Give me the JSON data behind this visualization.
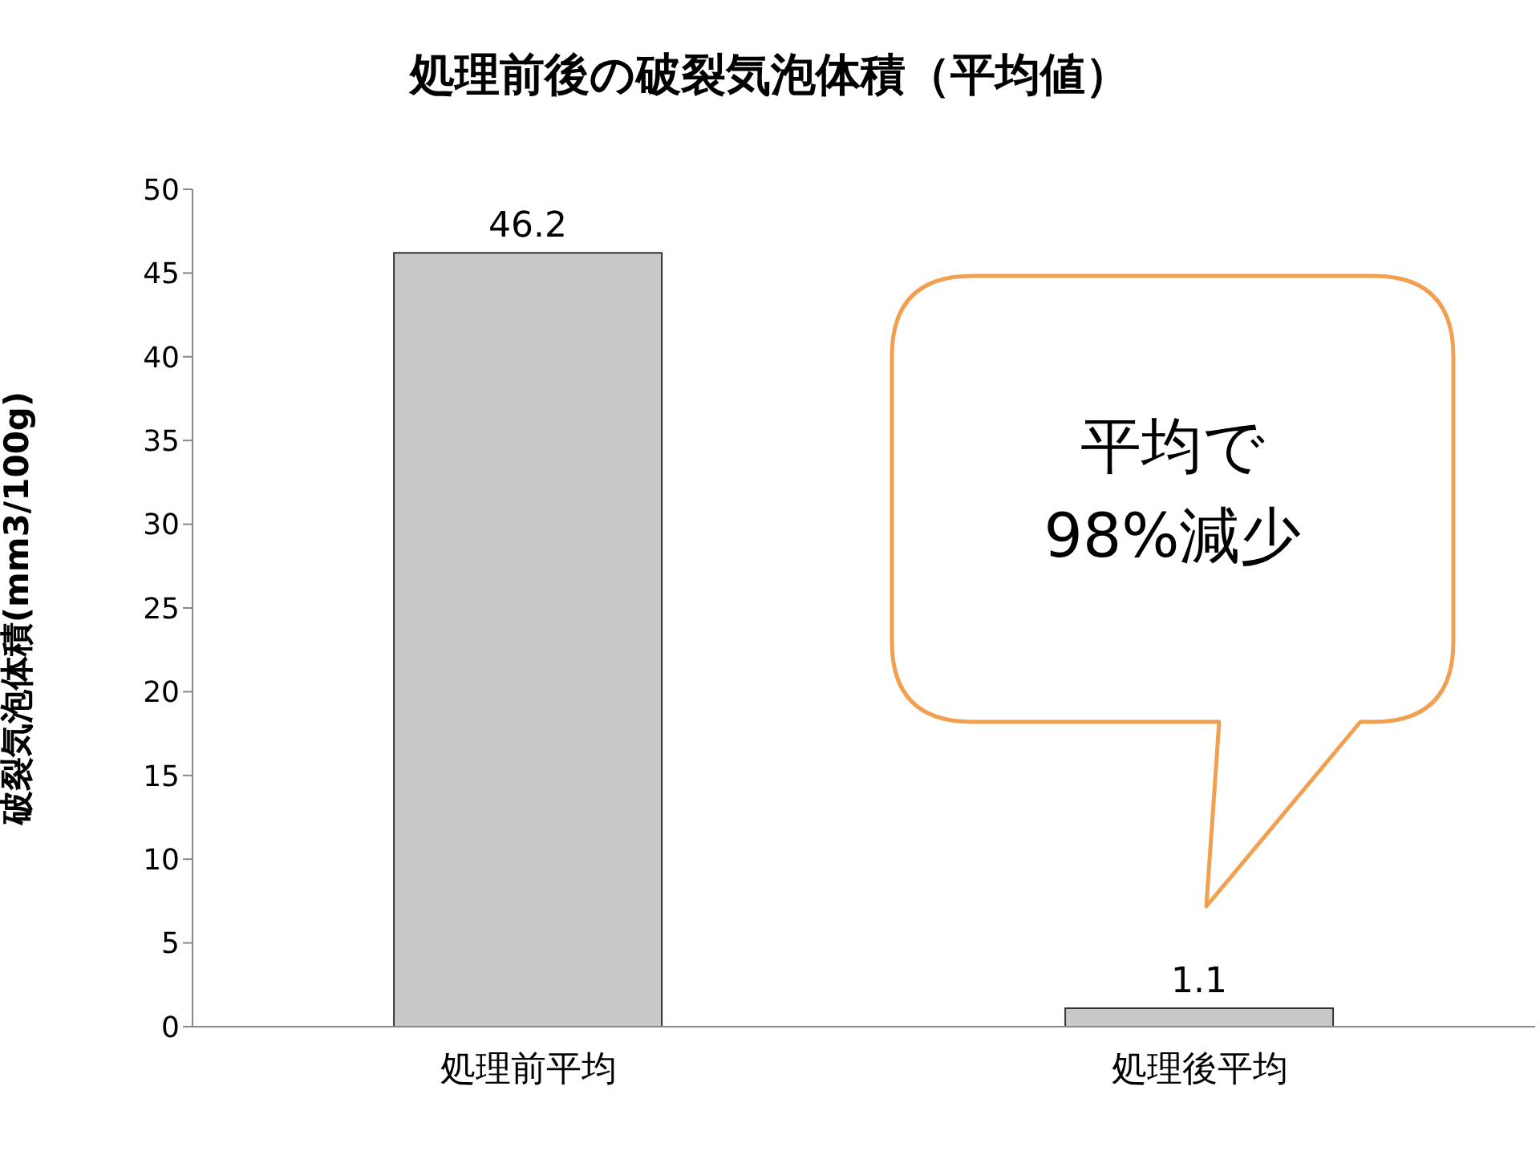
{
  "chart_data": {
    "type": "bar",
    "title": "処理前後の破裂気泡体積（平均値）",
    "ylabel": "破裂気泡体積(mm3/100g)",
    "categories": [
      "処理前平均",
      "処理後平均"
    ],
    "values": [
      46.2,
      1.1
    ],
    "color": "#c8c8c8",
    "ylim": [
      0,
      50
    ],
    "yticks": [
      0,
      5,
      10,
      15,
      20,
      25,
      30,
      35,
      40,
      45,
      50
    ],
    "grid": false,
    "data_labels": true,
    "annotations": [
      "平均で\n98%減少"
    ]
  }
}
